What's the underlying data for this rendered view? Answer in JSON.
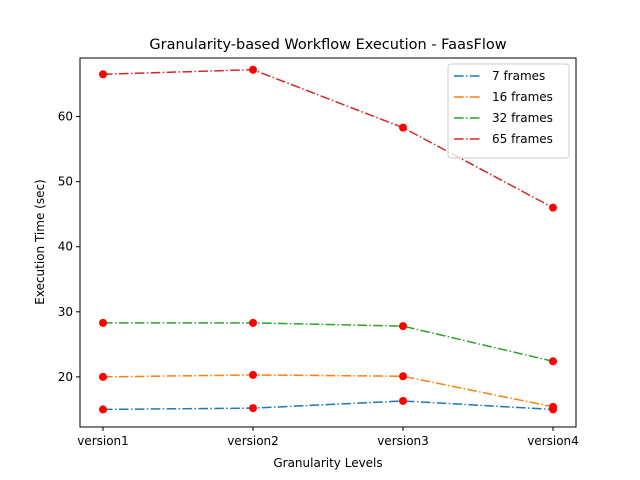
{
  "chart_data": {
    "type": "line",
    "title": "Granularity-based Workflow Execution - FaasFlow",
    "xlabel": "Granularity Levels",
    "ylabel": "Execution Time (sec)",
    "categories": [
      "version1",
      "version2",
      "version3",
      "version4"
    ],
    "ylim": [
      12.3,
      69.0
    ],
    "yticks": [
      20,
      30,
      40,
      50,
      60
    ],
    "grid": false,
    "legend_position": "top-right",
    "line_style": "dash-dot",
    "marker_color": "#ff0000",
    "series": [
      {
        "name": "7 frames",
        "color": "#1f77b4",
        "values": [
          15.0,
          15.2,
          16.3,
          15.0
        ]
      },
      {
        "name": "16 frames",
        "color": "#ff7f0e",
        "values": [
          20.0,
          20.3,
          20.1,
          15.4
        ]
      },
      {
        "name": "32 frames",
        "color": "#2ca02c",
        "values": [
          28.3,
          28.3,
          27.8,
          22.4
        ]
      },
      {
        "name": "65 frames",
        "color": "#d62728",
        "values": [
          66.5,
          67.2,
          58.3,
          46.0
        ]
      }
    ]
  }
}
